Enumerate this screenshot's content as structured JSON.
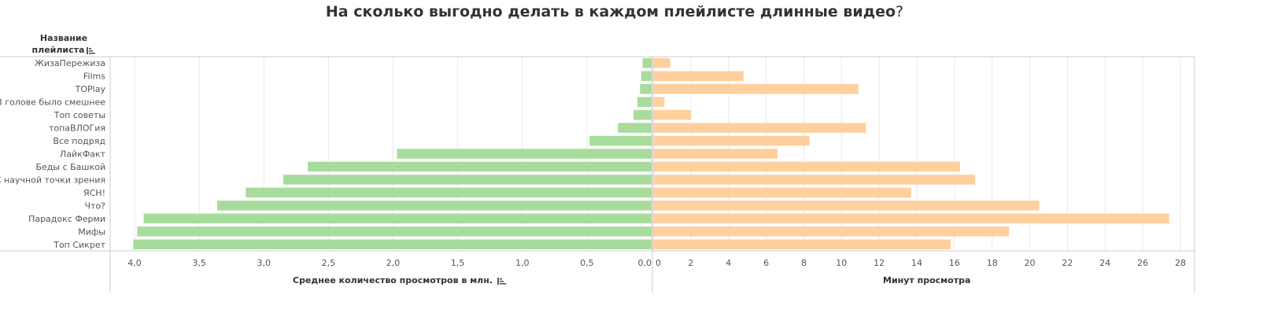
{
  "title": "На сколько выгодно делать в каждом плейлисте длинные видео",
  "title_suffix": "?",
  "row_header": {
    "line1": "Название",
    "line2": "плейлиста"
  },
  "colors": {
    "left_bar": "#a8dc9c",
    "right_bar": "#ffcf9e",
    "grid": "#e9e9e9",
    "axis": "#cccccc"
  },
  "chart_data": {
    "type": "bar",
    "orientation": "horizontal",
    "layout": "butterfly",
    "categories": [
      "ЖизаПережиза",
      "Films",
      "TOPlay",
      "В голове было смешнее",
      "Топ советы",
      "топаВЛОГия",
      "Все подряд",
      "ЛайкФакт",
      "Беды с Башкой",
      "С научной точки зрения",
      "ЯСН!",
      "Что?",
      "Парадокс Ферми",
      "Мифы",
      "Топ Сикрет"
    ],
    "series": [
      {
        "name": "Среднее количество просмотров в млн.",
        "side": "left",
        "values": [
          0.07,
          0.08,
          0.09,
          0.11,
          0.14,
          0.26,
          0.48,
          1.97,
          2.66,
          2.85,
          3.14,
          3.36,
          3.93,
          3.98,
          4.01
        ],
        "xlim": [
          0,
          4.0
        ],
        "reversed": true,
        "ticks": [
          "4,0",
          "3,5",
          "3,0",
          "2,5",
          "2,0",
          "1,5",
          "1,0",
          "0,5",
          "0,0"
        ],
        "tick_values": [
          4.0,
          3.5,
          3.0,
          2.5,
          2.0,
          1.5,
          1.0,
          0.5,
          0.0
        ]
      },
      {
        "name": "Минут просмотра",
        "side": "right",
        "values": [
          0.9,
          4.8,
          10.9,
          0.6,
          2.0,
          11.3,
          8.3,
          6.6,
          16.3,
          17.1,
          13.7,
          20.5,
          27.4,
          18.9,
          15.8
        ],
        "xlim": [
          0,
          28
        ],
        "ticks": [
          "0",
          "2",
          "4",
          "6",
          "8",
          "10",
          "12",
          "14",
          "16",
          "18",
          "20",
          "22",
          "24",
          "26",
          "28"
        ],
        "tick_values": [
          0,
          2,
          4,
          6,
          8,
          10,
          12,
          14,
          16,
          18,
          20,
          22,
          24,
          26,
          28
        ]
      }
    ],
    "xlabel_left": "Среднее количество просмотров в млн.",
    "xlabel_right": "Минут просмотра",
    "grid": true
  }
}
